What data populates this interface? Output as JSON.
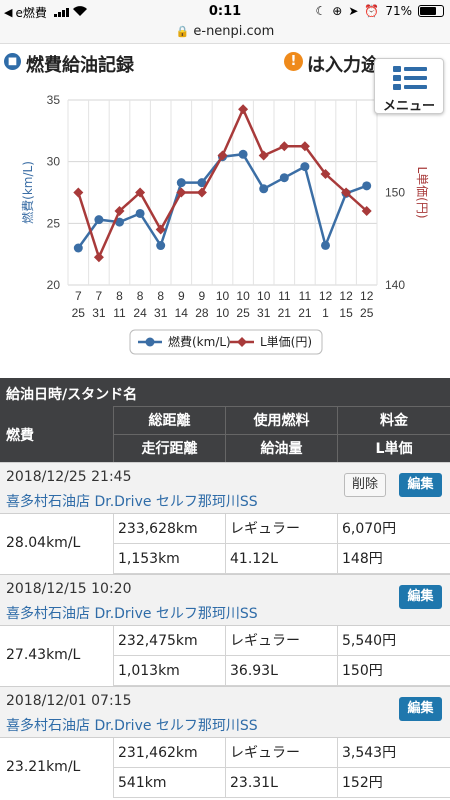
{
  "status_bar": {
    "back_app": "e燃費",
    "time": "0:11",
    "battery": "71%",
    "battery_level": 0.71
  },
  "url_bar": {
    "url": "e-nenpi.com"
  },
  "header": {
    "title": "燃費給油記録",
    "notice": "は入力途",
    "menu_label": "メニュー"
  },
  "chart_data": {
    "type": "line",
    "categories": [
      [
        "7",
        "25"
      ],
      [
        "7",
        "31"
      ],
      [
        "8",
        "11"
      ],
      [
        "8",
        "24"
      ],
      [
        "8",
        "31"
      ],
      [
        "9",
        "14"
      ],
      [
        "9",
        "28"
      ],
      [
        "10",
        "10"
      ],
      [
        "10",
        "25"
      ],
      [
        "10",
        "31"
      ],
      [
        "11",
        "21"
      ],
      [
        "11",
        "21"
      ],
      [
        "12",
        "1"
      ],
      [
        "12",
        "15"
      ],
      [
        "12",
        "25"
      ]
    ],
    "series": [
      {
        "name": "燃費(km/L)",
        "axis": "left",
        "color": "#3b6ea5",
        "marker": "circle",
        "values": [
          23.0,
          25.3,
          25.1,
          25.8,
          23.2,
          28.3,
          28.3,
          30.4,
          30.6,
          27.8,
          28.7,
          29.6,
          23.21,
          27.43,
          28.04
        ]
      },
      {
        "name": "L単価(円)",
        "axis": "right",
        "color": "#a83a3a",
        "marker": "diamond",
        "values": [
          150,
          143,
          148,
          150,
          146,
          150,
          150,
          154,
          159,
          154,
          155,
          155,
          152,
          150,
          148
        ]
      }
    ],
    "ylabel_left": "燃費(km/L)",
    "ylabel_right": "L単価(円)",
    "yticks_left": [
      "20",
      "25",
      "30",
      "35"
    ],
    "yticks_right": [
      "140",
      "150",
      "160"
    ],
    "ylim_left": [
      20,
      35
    ],
    "ylim_right": [
      140,
      160
    ],
    "grid": true,
    "legend_position": "bottom"
  },
  "table_header": {
    "title": "給油日時/スタンド名",
    "fuel_efficiency": "燃費",
    "total_distance": "総距離",
    "fuel_type": "使用燃料",
    "price": "料金",
    "distance_driven": "走行距離",
    "fuel_amount": "給油量",
    "unit_price": "L単価"
  },
  "records": [
    {
      "datetime": "2018/12/25 21:45",
      "station": "喜多村石油店 Dr.Drive セルフ那珂川SS",
      "delete_label": "削除",
      "edit_label": "編集",
      "efficiency": "28.04km/L",
      "total_distance": "233,628km",
      "fuel_type": "レギュラー",
      "price": "6,070円",
      "distance": "1,153km",
      "amount": "41.12L",
      "unit_price": "148円"
    },
    {
      "datetime": "2018/12/15 10:20",
      "station": "喜多村石油店 Dr.Drive セルフ那珂川SS",
      "edit_label": "編集",
      "efficiency": "27.43km/L",
      "total_distance": "232,475km",
      "fuel_type": "レギュラー",
      "price": "5,540円",
      "distance": "1,013km",
      "amount": "36.93L",
      "unit_price": "150円"
    },
    {
      "datetime": "2018/12/01 07:15",
      "station": "喜多村石油店 Dr.Drive セルフ那珂川SS",
      "edit_label": "編集",
      "efficiency": "23.21km/L",
      "total_distance": "231,462km",
      "fuel_type": "レギュラー",
      "price": "3,543円",
      "distance": "541km",
      "amount": "23.31L",
      "unit_price": "152円"
    }
  ]
}
